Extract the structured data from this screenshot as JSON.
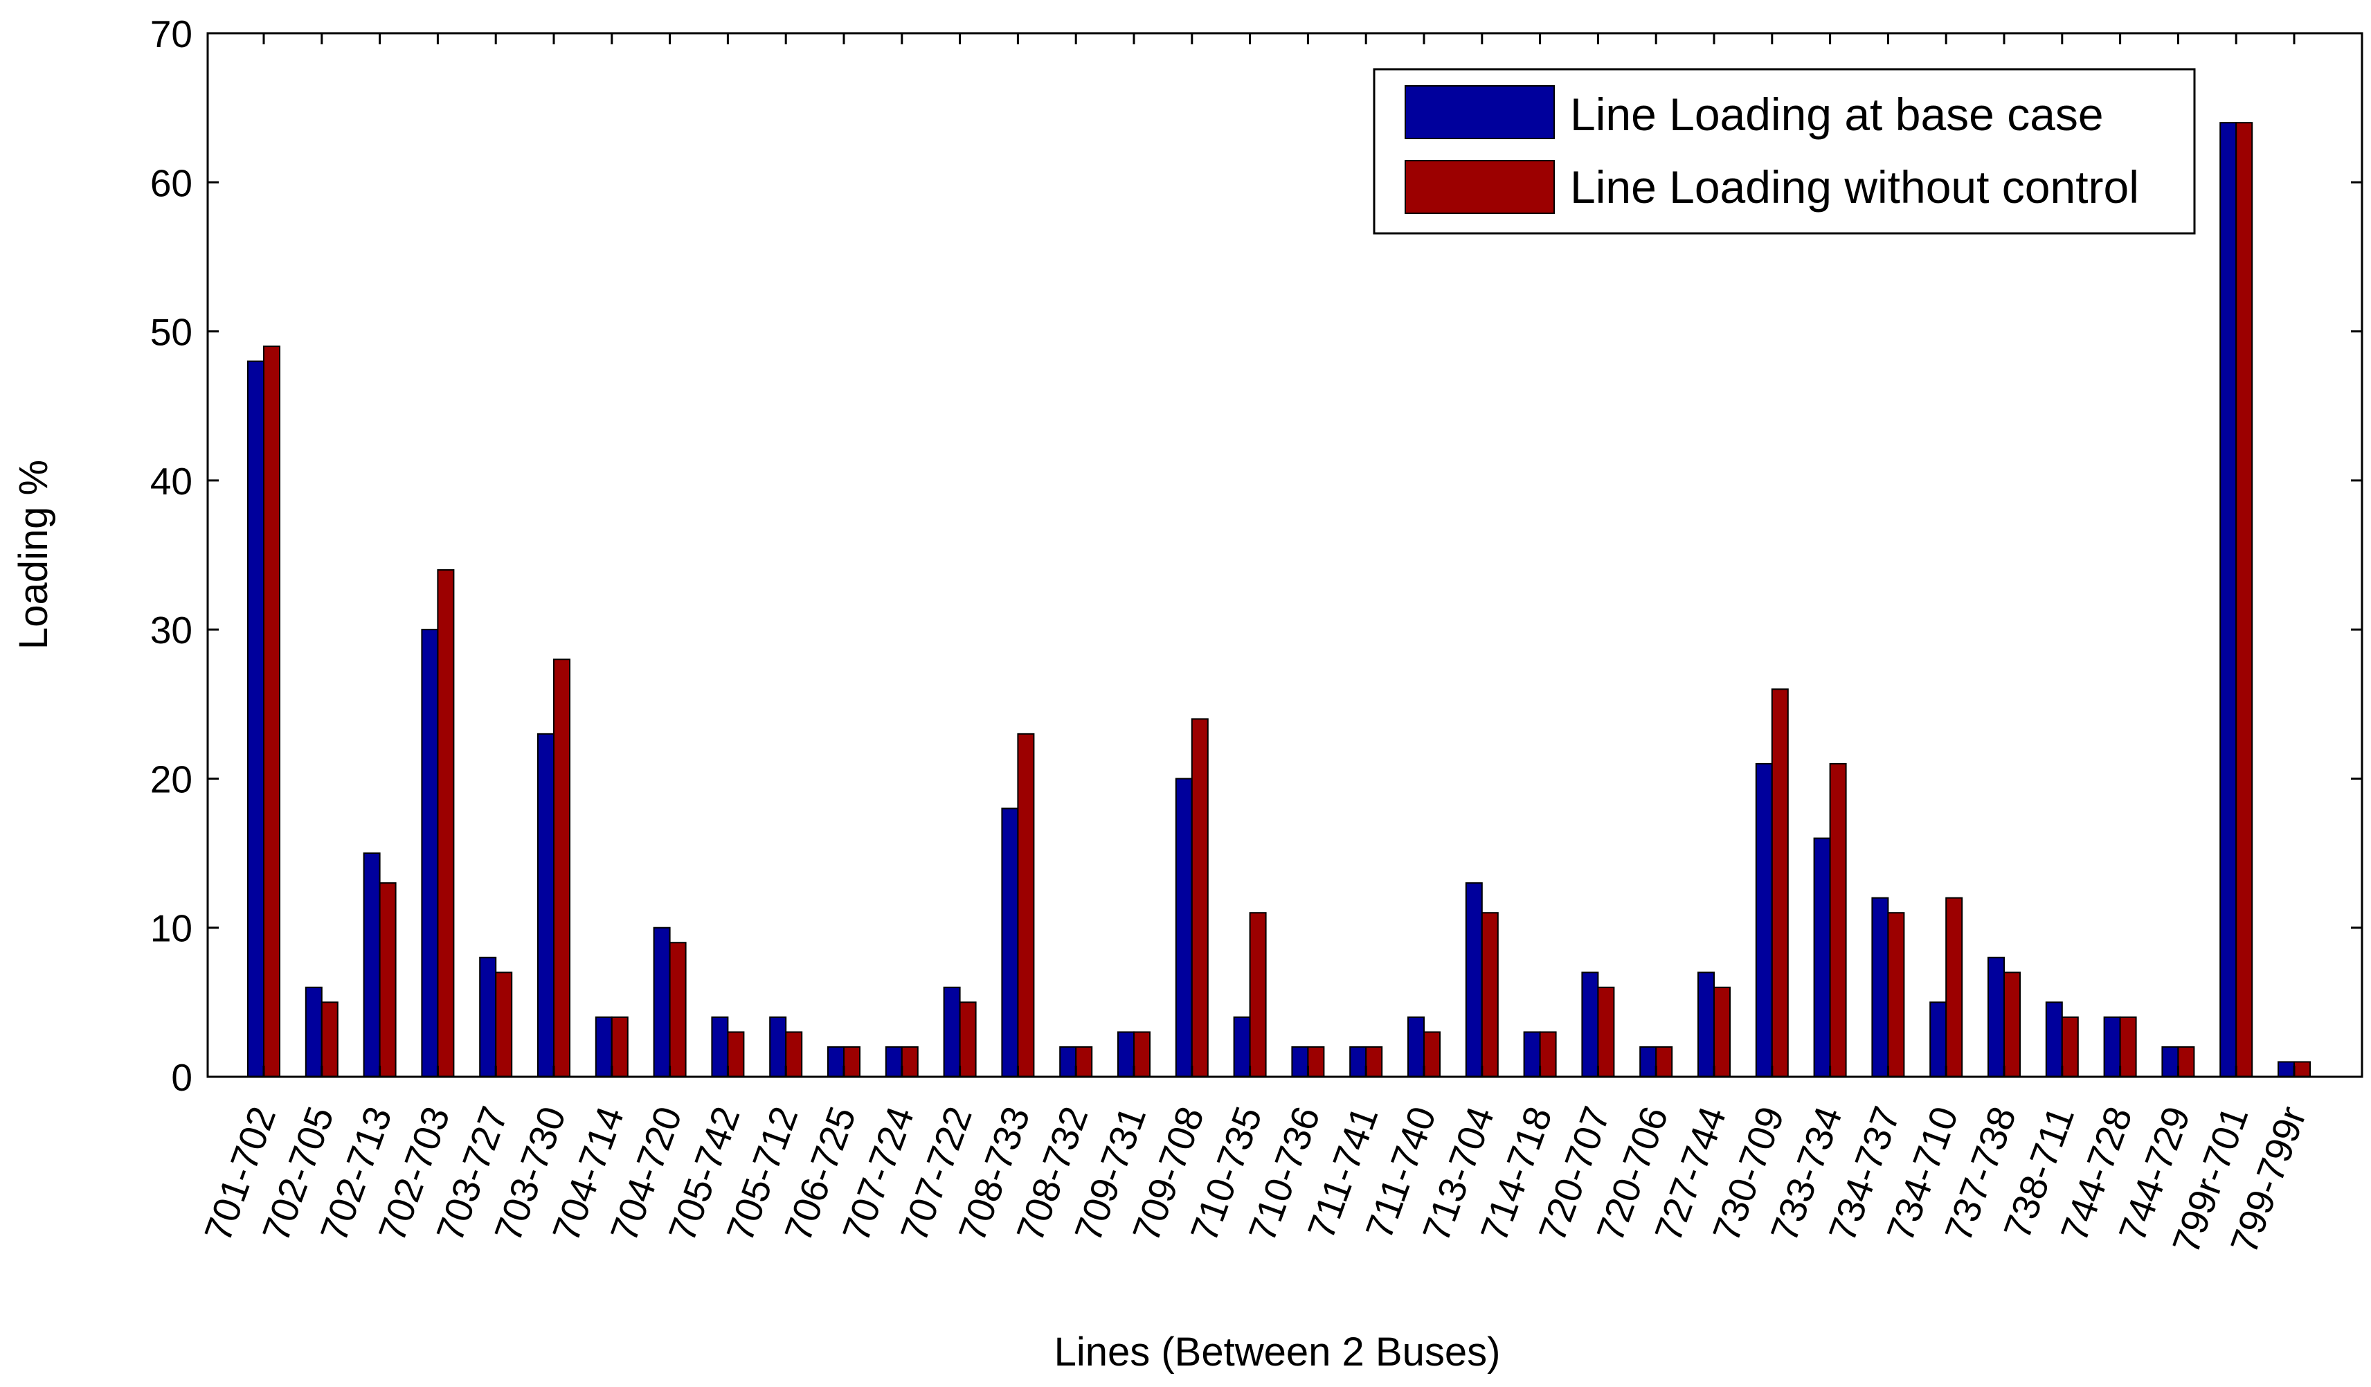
{
  "chart_data": {
    "type": "bar",
    "title": "",
    "xlabel": "Lines (Between 2 Buses)",
    "ylabel": "Loading %",
    "ylim": [
      0,
      70
    ],
    "yticks": [
      0,
      10,
      20,
      30,
      40,
      50,
      60,
      70
    ],
    "grid": false,
    "legend_position": "top-right",
    "categories": [
      "701-702",
      "702-705",
      "702-713",
      "702-703",
      "703-727",
      "703-730",
      "704-714",
      "704-720",
      "705-742",
      "705-712",
      "706-725",
      "707-724",
      "707-722",
      "708-733",
      "708-732",
      "709-731",
      "709-708",
      "710-735",
      "710-736",
      "711-741",
      "711-740",
      "713-704",
      "714-718",
      "720-707",
      "720-706",
      "727-744",
      "730-709",
      "733-734",
      "734-737",
      "734-710",
      "737-738",
      "738-711",
      "744-728",
      "744-729",
      "799r-701",
      "799-799r"
    ],
    "series": [
      {
        "name": "Line Loading at base case",
        "color": "#00009c",
        "values": [
          48,
          6,
          15,
          30,
          8,
          23,
          4,
          10,
          4,
          4,
          2,
          2,
          6,
          18,
          2,
          3,
          20,
          4,
          2,
          2,
          4,
          13,
          3,
          7,
          2,
          7,
          21,
          16,
          12,
          5,
          8,
          5,
          4,
          2,
          64,
          1
        ]
      },
      {
        "name": "Line Loading without control",
        "color": "#9c0000",
        "values": [
          49,
          5,
          13,
          34,
          7,
          28,
          4,
          9,
          3,
          3,
          2,
          2,
          5,
          23,
          2,
          3,
          24,
          11,
          2,
          2,
          3,
          11,
          3,
          6,
          2,
          6,
          26,
          21,
          11,
          12,
          7,
          4,
          4,
          2,
          64,
          1
        ]
      }
    ]
  }
}
